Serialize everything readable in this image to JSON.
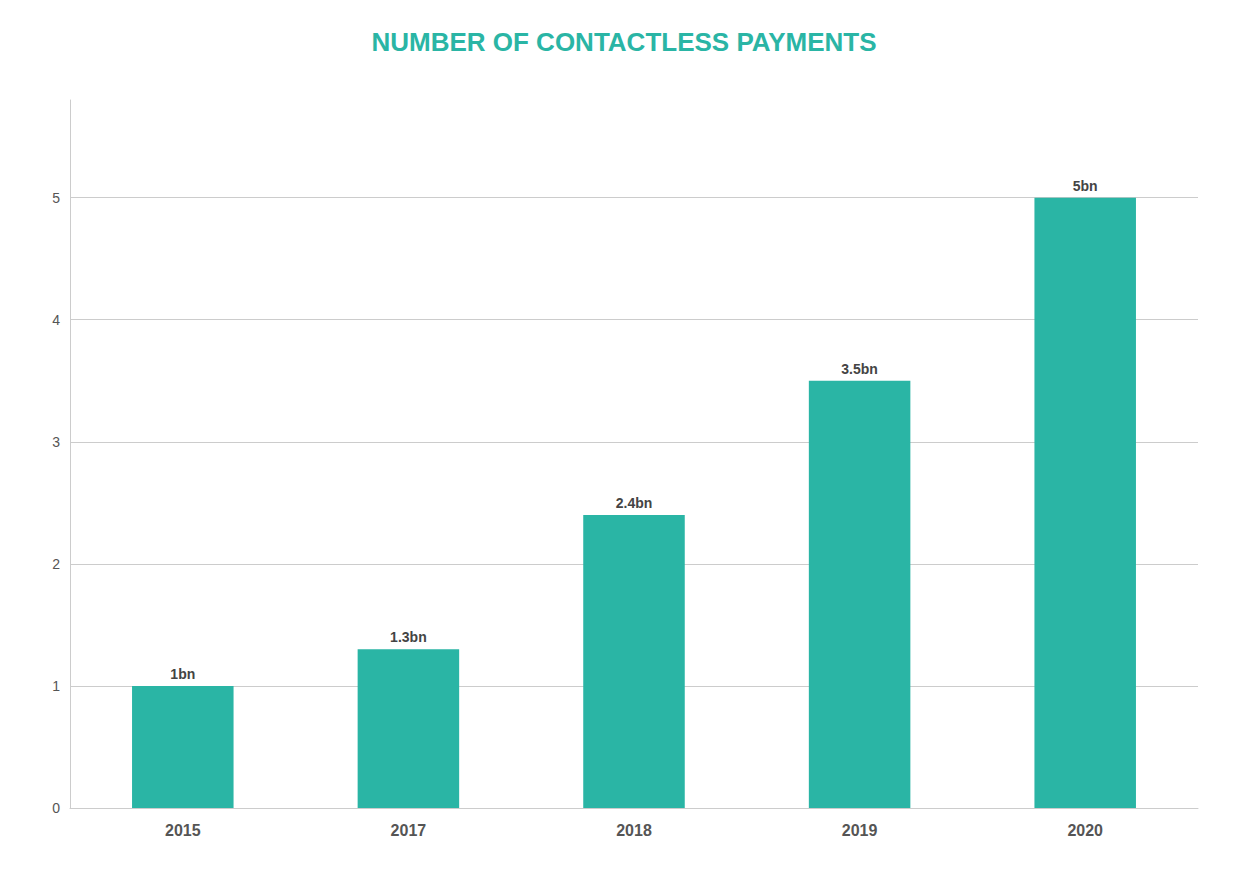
{
  "chart_data": {
    "type": "bar",
    "title": "NUMBER OF CONTACTLESS PAYMENTS",
    "categories": [
      "2015",
      "2017",
      "2018",
      "2019",
      "2020"
    ],
    "values": [
      1.0,
      1.3,
      2.4,
      3.5,
      5.0
    ],
    "value_labels": [
      "1bn",
      "1.3bn",
      "2.4bn",
      "3.5bn",
      "5bn"
    ],
    "color": "#2ab5a5",
    "ylim": [
      0,
      5.8
    ],
    "yticks": [
      0,
      1,
      2,
      3,
      4,
      5
    ],
    "grid": true
  }
}
